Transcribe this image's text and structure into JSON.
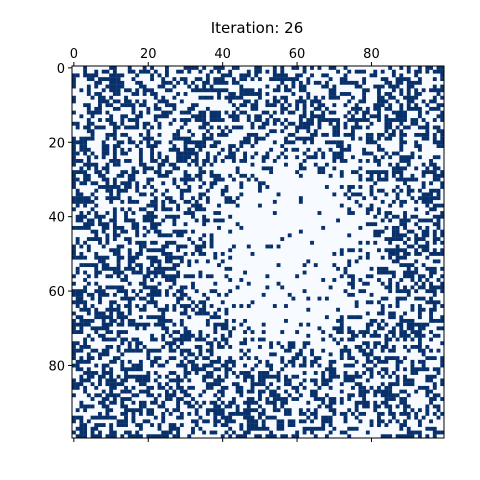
{
  "chart_data": {
    "type": "heatmap",
    "title": "Iteration: 26",
    "xlabel": "",
    "ylabel": "",
    "grid_size": [
      100,
      100
    ],
    "x_ticks": [
      0,
      20,
      40,
      60,
      80
    ],
    "y_ticks": [
      0,
      20,
      40,
      60,
      80
    ],
    "x_tick_position": "top",
    "y_axis_inverted": true,
    "bottom_ticks_unlabeled": true,
    "x_range": [
      -0.5,
      99.5
    ],
    "y_range": [
      -0.5,
      99.5
    ],
    "colormap": {
      "0": "#f7fbff",
      "1": "#08306b"
    },
    "alive_density_outer": 0.44,
    "alive_density_center": 0.06,
    "grid": false,
    "legend": "none"
  }
}
